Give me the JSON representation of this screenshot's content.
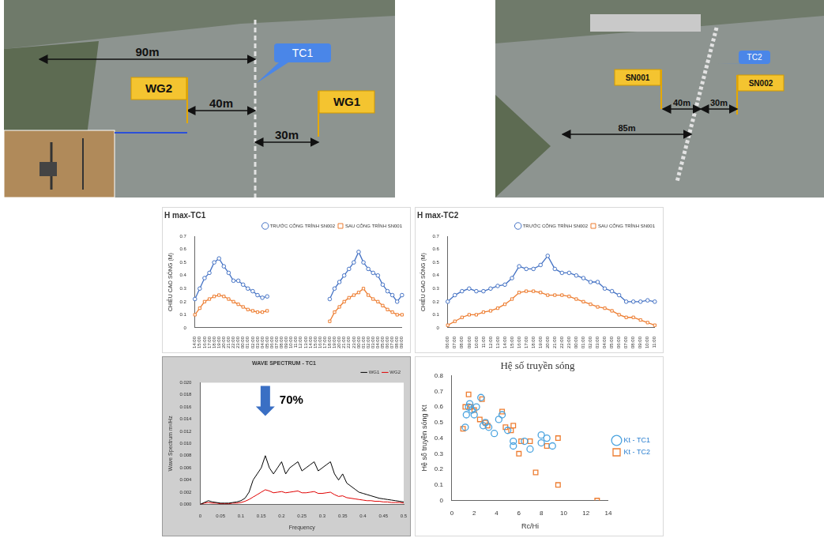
{
  "photos": [
    {
      "structure": "TC1",
      "gauges": [
        "WG2",
        "WG1"
      ],
      "distances": [
        "90m",
        "40m",
        "30m"
      ]
    },
    {
      "structure": "TC2",
      "gauges": [
        "SN001",
        "SN002"
      ],
      "distances": [
        "40m",
        "30m",
        "85m"
      ]
    }
  ],
  "chart_data": [
    {
      "type": "line",
      "title": "H max-TC1",
      "y_label": "CHIỀU CAO SÓNG (M)",
      "categories": [
        "14:00",
        "15:00",
        "16:00",
        "17:00",
        "18:00",
        "19:00",
        "20:00",
        "21:00",
        "22:00",
        "23:00",
        "00:00",
        "01:00",
        "02:00",
        "03:00",
        "04:00",
        "05:00",
        "06:00",
        "07:00",
        "08:00",
        "09:00",
        "10:00",
        "11:00",
        "12:00",
        "13:00",
        "14:00",
        "15:00",
        "16:00",
        "17:00",
        "18:00",
        "19:00",
        "20:00",
        "21:00",
        "22:00",
        "23:00",
        "00:00",
        "01:00",
        "02:00",
        "03:00",
        "04:00",
        "05:00",
        "06:00",
        "07:00",
        "08:00",
        "09:00"
      ],
      "series": [
        {
          "name": "TRƯỚC CÔNG TRÌNH SN002",
          "color": "#4472c4",
          "marker": "circle",
          "values": [
            0.22,
            0.3,
            0.38,
            0.42,
            0.5,
            0.53,
            0.47,
            0.42,
            0.36,
            0.36,
            0.33,
            0.3,
            0.28,
            0.25,
            0.23,
            0.24,
            null,
            null,
            null,
            null,
            null,
            null,
            null,
            null,
            null,
            null,
            null,
            null,
            0.22,
            0.3,
            0.35,
            0.4,
            0.45,
            0.5,
            0.58,
            0.5,
            0.45,
            0.42,
            0.4,
            0.33,
            0.28,
            0.25,
            0.2,
            0.25
          ]
        },
        {
          "name": "SAU CÔNG TRÌNH SN001",
          "color": "#ed7d31",
          "marker": "square",
          "values": [
            0.1,
            0.15,
            0.2,
            0.22,
            0.24,
            0.25,
            0.24,
            0.22,
            0.2,
            0.18,
            0.16,
            0.14,
            0.13,
            0.12,
            0.12,
            0.13,
            null,
            null,
            null,
            null,
            null,
            null,
            null,
            null,
            null,
            null,
            null,
            null,
            0.05,
            0.12,
            0.16,
            0.2,
            0.23,
            0.25,
            0.27,
            0.3,
            0.25,
            0.22,
            0.2,
            0.17,
            0.14,
            0.12,
            0.1,
            0.1
          ]
        }
      ],
      "ylim": [
        0,
        0.7
      ],
      "yticks": [
        0,
        0.1,
        0.2,
        0.3,
        0.4,
        0.5,
        0.6,
        0.7
      ],
      "grid": false,
      "legend": "top-right"
    },
    {
      "type": "line",
      "title": "H max-TC2",
      "y_label": "CHIỀU CAO SÓNG (M)",
      "categories": [
        "06:00",
        "07:00",
        "08:00",
        "09:00",
        "10:00",
        "11:00",
        "12:00",
        "13:00",
        "14:00",
        "15:00",
        "16:00",
        "17:00",
        "18:00",
        "19:00",
        "20:00",
        "21:00",
        "22:00",
        "23:00",
        "00:00",
        "01:00",
        "02:00",
        "03:00",
        "04:00",
        "05:00",
        "06:00",
        "07:00",
        "08:00",
        "09:00",
        "10:00",
        "11:00"
      ],
      "series": [
        {
          "name": "TRƯỚC CÔNG TRÌNH SN002",
          "color": "#4472c4",
          "marker": "circle",
          "values": [
            0.2,
            0.25,
            0.28,
            0.3,
            0.28,
            0.28,
            0.3,
            0.32,
            0.33,
            0.38,
            0.47,
            0.45,
            0.45,
            0.48,
            0.55,
            0.45,
            0.42,
            0.42,
            0.4,
            0.38,
            0.35,
            0.35,
            0.3,
            0.28,
            0.25,
            0.2,
            0.2,
            0.2,
            0.21,
            0.2
          ]
        },
        {
          "name": "SAU CÔNG TRÌNH SN001",
          "color": "#ed7d31",
          "marker": "square",
          "values": [
            0.02,
            0.05,
            0.08,
            0.1,
            0.1,
            0.12,
            0.13,
            0.15,
            0.18,
            0.22,
            0.27,
            0.28,
            0.28,
            0.27,
            0.25,
            0.25,
            0.25,
            0.24,
            0.22,
            0.2,
            0.18,
            0.16,
            0.15,
            0.13,
            0.1,
            0.08,
            0.08,
            0.06,
            0.04,
            0.02
          ]
        }
      ],
      "ylim": [
        0,
        0.7
      ],
      "yticks": [
        0,
        0.1,
        0.2,
        0.3,
        0.4,
        0.5,
        0.6,
        0.7
      ],
      "grid": false,
      "legend": "top-right"
    },
    {
      "type": "line",
      "title": "WAVE SPECTRUM - TC1",
      "x_label": "Frequency",
      "y_label": "Wave Spectrum m²/Hz",
      "x": [
        0,
        0.01,
        0.02,
        0.03,
        0.04,
        0.05,
        0.06,
        0.07,
        0.08,
        0.09,
        0.1,
        0.11,
        0.12,
        0.13,
        0.14,
        0.15,
        0.16,
        0.17,
        0.18,
        0.19,
        0.2,
        0.21,
        0.22,
        0.23,
        0.24,
        0.25,
        0.26,
        0.27,
        0.28,
        0.29,
        0.3,
        0.31,
        0.32,
        0.33,
        0.34,
        0.35,
        0.36,
        0.37,
        0.38,
        0.39,
        0.4,
        0.41,
        0.42,
        0.43,
        0.44,
        0.45,
        0.46,
        0.47,
        0.48,
        0.49,
        0.5
      ],
      "series": [
        {
          "name": "WG1",
          "color": "#000000",
          "line_style": "solid",
          "values": [
            0,
            0.0003,
            0.0006,
            0.0004,
            0.0003,
            0.0002,
            0.0002,
            0.0002,
            0.0003,
            0.0004,
            0.0006,
            0.001,
            0.002,
            0.004,
            0.005,
            0.006,
            0.008,
            0.006,
            0.005,
            0.006,
            0.007,
            0.005,
            0.006,
            0.0065,
            0.007,
            0.0055,
            0.006,
            0.0065,
            0.007,
            0.0055,
            0.006,
            0.0065,
            0.007,
            0.005,
            0.004,
            0.005,
            0.0035,
            0.003,
            0.0025,
            0.002,
            0.0018,
            0.0016,
            0.0014,
            0.0012,
            0.001,
            0.0009,
            0.0008,
            0.0007,
            0.0006,
            0.0005,
            0.0004
          ]
        },
        {
          "name": "WG2",
          "color": "#e00000",
          "line_style": "solid",
          "values": [
            0,
            0.0002,
            0.0003,
            0.0002,
            0.0002,
            0.0001,
            0.0001,
            0.0001,
            0.0002,
            0.0002,
            0.0003,
            0.0005,
            0.0008,
            0.0012,
            0.0016,
            0.002,
            0.0024,
            0.0022,
            0.0019,
            0.002,
            0.0021,
            0.0019,
            0.002,
            0.0021,
            0.0022,
            0.0019,
            0.0019,
            0.002,
            0.0021,
            0.0018,
            0.0018,
            0.0019,
            0.002,
            0.0016,
            0.0013,
            0.0014,
            0.0011,
            0.001,
            0.0009,
            0.0008,
            0.0007,
            0.0006,
            0.0006,
            0.0005,
            0.0005,
            0.0004,
            0.0004,
            0.0003,
            0.0003,
            0.0003,
            0.0002
          ]
        }
      ],
      "xlim": [
        0,
        0.5
      ],
      "xticks": [
        0,
        0.05,
        0.1,
        0.15,
        0.2,
        0.25,
        0.3,
        0.35,
        0.4,
        0.45,
        0.5
      ],
      "ylim": [
        0,
        0.02
      ],
      "yticks": [
        {
          "value": 0,
          "label": "0.000"
        },
        {
          "value": 0.002,
          "label": "0.002"
        },
        {
          "value": 0.004,
          "label": "0.004"
        },
        {
          "value": 0.006,
          "label": "0.006"
        },
        {
          "value": 0.008,
          "label": "0.008"
        },
        {
          "value": 0.01,
          "label": "0.010"
        },
        {
          "value": 0.012,
          "label": "0.012"
        },
        {
          "value": 0.014,
          "label": "0.014"
        },
        {
          "value": 0.016,
          "label": "0.016"
        },
        {
          "value": 0.018,
          "label": "0.018"
        },
        {
          "value": 0.02,
          "label": "0.020"
        }
      ],
      "annotation": {
        "text": "70%",
        "x": 0.16
      },
      "grid": false,
      "legend": "top-right"
    },
    {
      "type": "scatter",
      "title": "Hệ số truyền sóng",
      "x_label": "Rc/Hi",
      "y_label": "Hệ số truyền sóng Kt",
      "series": [
        {
          "name": "Kt - TC1",
          "color": "#4aa3df",
          "marker": "circle",
          "x": [
            1.2,
            1.3,
            1.5,
            1.6,
            1.8,
            2,
            2.2,
            2.6,
            2.8,
            3,
            3.3,
            3.8,
            4.2,
            4.5,
            5,
            5.5,
            5.5,
            6.5,
            7,
            8,
            8,
            8.5,
            9
          ],
          "values": [
            0.47,
            0.55,
            0.6,
            0.62,
            0.58,
            0.55,
            0.6,
            0.66,
            0.48,
            0.5,
            0.47,
            0.43,
            0.52,
            0.55,
            0.45,
            0.38,
            0.35,
            0.38,
            0.33,
            0.42,
            0.37,
            0.4,
            0.35
          ]
        },
        {
          "name": "Kt - TC2",
          "color": "#ed7d31",
          "marker": "square",
          "x": [
            1,
            1.2,
            1.5,
            1.7,
            2,
            2.5,
            2.7,
            3,
            3.2,
            4.5,
            4.8,
            5.3,
            5.5,
            6,
            6.2,
            7,
            7.5,
            8.5,
            9.5,
            9.5,
            13
          ],
          "values": [
            0.46,
            0.6,
            0.68,
            0.6,
            0.58,
            0.52,
            0.65,
            0.5,
            0.48,
            0.57,
            0.47,
            0.45,
            0.48,
            0.3,
            0.38,
            0.38,
            0.18,
            0.35,
            0.4,
            0.1,
            0
          ]
        }
      ],
      "xlim": [
        0,
        14
      ],
      "xticks": [
        0,
        2,
        4,
        6,
        8,
        10,
        12,
        14
      ],
      "ylim": [
        0,
        0.8
      ],
      "yticks": [
        0,
        0.1,
        0.2,
        0.3,
        0.4,
        0.5,
        0.6,
        0.7,
        0.8
      ],
      "grid": false,
      "legend": "right"
    }
  ]
}
